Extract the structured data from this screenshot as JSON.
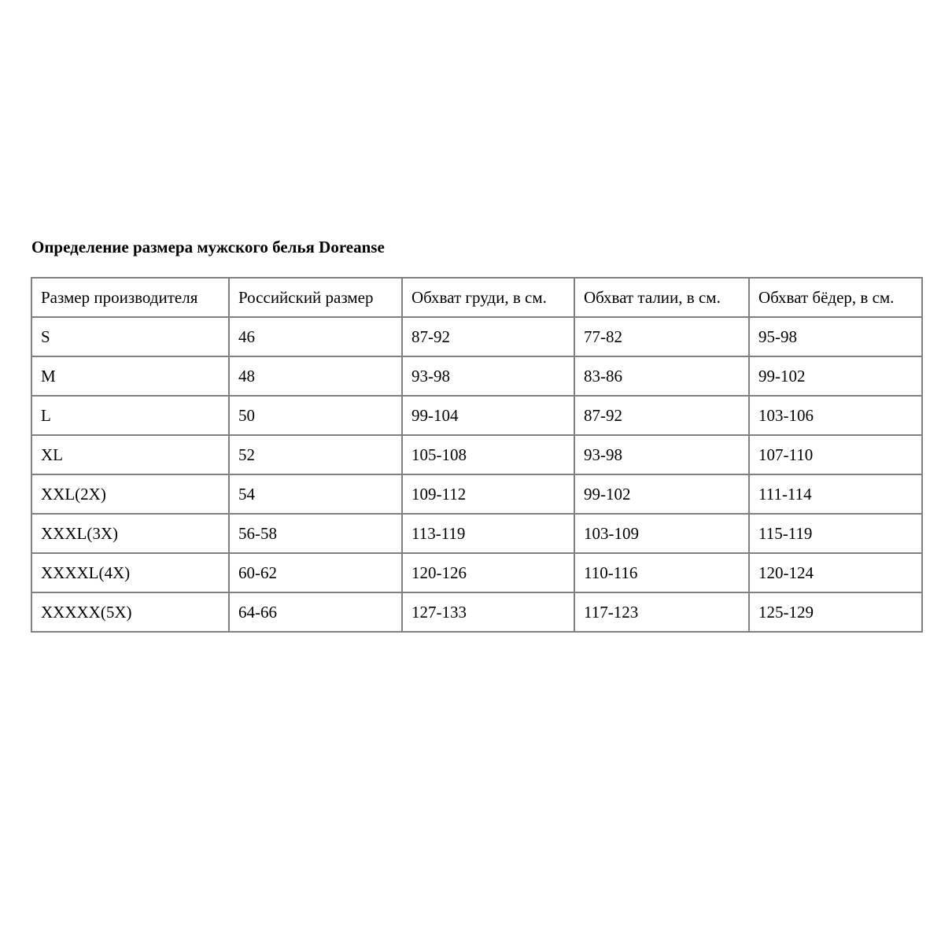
{
  "title": "Определение размера мужского белья Doreanse",
  "table": {
    "headers": [
      "Размер производителя",
      "Российский размер",
      "Обхват груди, в см.",
      "Обхват талии, в см.",
      "Обхват бёдер, в см."
    ],
    "rows": [
      [
        "S",
        "46",
        "87-92",
        "77-82",
        "95-98"
      ],
      [
        "M",
        "48",
        "93-98",
        "83-86",
        "99-102"
      ],
      [
        "L",
        "50",
        "99-104",
        "87-92",
        "103-106"
      ],
      [
        "XL",
        "52",
        "105-108",
        "93-98",
        "107-110"
      ],
      [
        "XXL(2X)",
        "54",
        "109-112",
        "99-102",
        "111-114"
      ],
      [
        "XXXL(3X)",
        "56-58",
        "113-119",
        "103-109",
        "115-119"
      ],
      [
        "XXXXL(4X)",
        "60-62",
        "120-126",
        "110-116",
        "120-124"
      ],
      [
        "XXXXX(5X)",
        "64-66",
        "127-133",
        "117-123",
        "125-129"
      ]
    ]
  }
}
